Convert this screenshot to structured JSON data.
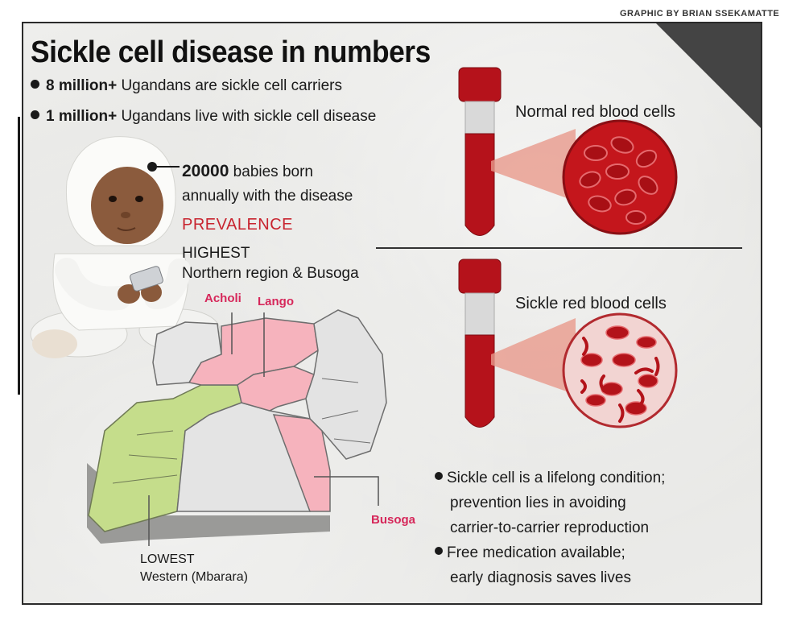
{
  "credit": "GRAPHIC BY BRIAN SSEKAMATTE",
  "title": "Sickle cell disease in numbers",
  "stats": [
    {
      "number": "8 million+",
      "text": " Ugandans are sickle cell carriers"
    },
    {
      "number": "1 million+",
      "text": " Ugandans live with sickle cell disease"
    }
  ],
  "babies": {
    "number": "20000",
    "line1": " babies born",
    "line2": "annually with the disease"
  },
  "prevalence": {
    "heading": "PREVALENCE",
    "highest_label": "HIGHEST",
    "highest_regions": "Northern region & Busoga",
    "lowest_label": "LOWEST",
    "lowest_regions": "Western (Mbarara)"
  },
  "map_labels": {
    "acholi": "Acholi",
    "lango": "Lango",
    "busoga": "Busoga"
  },
  "cells": {
    "normal": "Normal red blood cells",
    "sickle": "Sickle red blood cells"
  },
  "notes": [
    {
      "line1": "Sickle cell is a lifelong condition;",
      "line2": "prevention lies in avoiding",
      "line3": "carrier-to-carrier reproduction"
    },
    {
      "line1": "Free medication available;",
      "line2": "early diagnosis saves lives"
    }
  ],
  "colors": {
    "accent_red": "#c8242f",
    "highlight_pink": "#f6b3bd",
    "lowest_green": "#c5dd8b",
    "blood_red": "#b5121b"
  }
}
